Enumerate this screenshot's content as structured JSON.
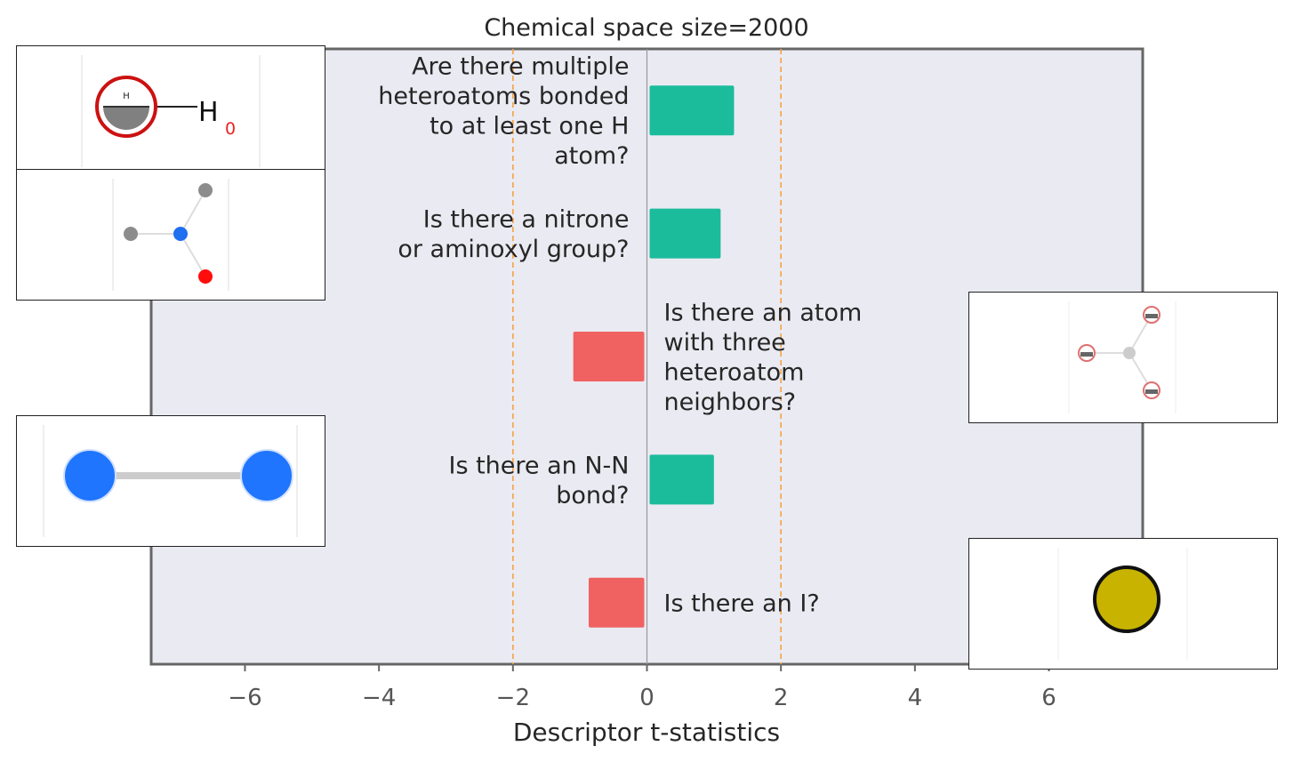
{
  "chart_data": {
    "type": "bar",
    "orientation": "horizontal",
    "title": "Chemical space size=2000",
    "xlabel": "Descriptor t-statistics",
    "ylabel": "",
    "xlim": [
      -7.4,
      7.4
    ],
    "xticks": [
      -6,
      -4,
      -2,
      0,
      2,
      4,
      6
    ],
    "xtick_labels": [
      "−6",
      "−4",
      "−2",
      "0",
      "2",
      "4",
      "6"
    ],
    "grid": false,
    "threshold_lines": [
      -2,
      2
    ],
    "categories": [
      "Are there multiple heteroatoms bonded to at least one H atom?",
      "Is there a nitrone or aminoxyl group?",
      "Is there an atom with three heteroatom neighbors?",
      "Is there an N-N bond?",
      "Is there an I?"
    ],
    "category_lines": [
      [
        "Are there multiple",
        "heteroatoms bonded",
        "to at least one H",
        "atom?"
      ],
      [
        "Is there a nitrone",
        "or aminoxyl group?"
      ],
      [
        "Is there an atom",
        "with three",
        "heteroatom",
        "neighbors?"
      ],
      [
        "Is there an N-N",
        "bond?"
      ],
      [
        "Is there an I?"
      ]
    ],
    "values": [
      1.3,
      1.1,
      -1.1,
      1.0,
      -0.87
    ]
  },
  "colors": {
    "positive": "#1abc9c",
    "negative": "#f06262",
    "threshold": "#f5a442",
    "plot_background": "#eaeaf2",
    "axes_border": "#666666",
    "zero_line": "#999999",
    "text": "#262626"
  },
  "insets": {
    "inset1": {
      "label_h": "H",
      "label_small": "H",
      "label_zero": "0"
    }
  }
}
